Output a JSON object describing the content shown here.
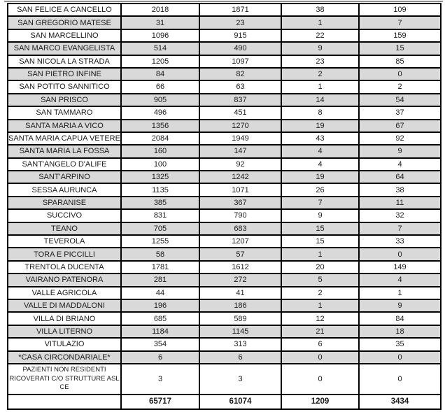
{
  "colors": {
    "shaded_row": "#d9d9d9",
    "border": "#000000",
    "text": "#1b1b1b",
    "background": "#ffffff"
  },
  "table": {
    "description": "Municipality table with four numeric value columns and a bold totals row",
    "rows": [
      {
        "name": "SAN FELICE A CANCELLO",
        "values": [
          "2018",
          "1871",
          "38",
          "109"
        ],
        "shaded": false
      },
      {
        "name": "SAN GREGORIO MATESE",
        "values": [
          "31",
          "23",
          "1",
          "7"
        ],
        "shaded": true
      },
      {
        "name": "SAN MARCELLINO",
        "values": [
          "1096",
          "915",
          "22",
          "159"
        ],
        "shaded": false
      },
      {
        "name": "SAN MARCO EVANGELISTA",
        "values": [
          "514",
          "490",
          "9",
          "15"
        ],
        "shaded": true
      },
      {
        "name": "SAN NICOLA LA STRADA",
        "values": [
          "1205",
          "1097",
          "23",
          "85"
        ],
        "shaded": false
      },
      {
        "name": "SAN PIETRO INFINE",
        "values": [
          "84",
          "82",
          "2",
          "0"
        ],
        "shaded": true
      },
      {
        "name": "SAN POTITO SANNITICO",
        "values": [
          "66",
          "63",
          "1",
          "2"
        ],
        "shaded": false
      },
      {
        "name": "SAN PRISCO",
        "values": [
          "905",
          "837",
          "14",
          "54"
        ],
        "shaded": true
      },
      {
        "name": "SAN TAMMARO",
        "values": [
          "496",
          "451",
          "8",
          "37"
        ],
        "shaded": false
      },
      {
        "name": "SANTA MARIA A VICO",
        "values": [
          "1356",
          "1270",
          "19",
          "67"
        ],
        "shaded": true
      },
      {
        "name": "SANTA MARIA CAPUA VETERE",
        "values": [
          "2084",
          "1949",
          "43",
          "92"
        ],
        "shaded": false
      },
      {
        "name": "SANTA MARIA LA FOSSA",
        "values": [
          "160",
          "147",
          "4",
          "9"
        ],
        "shaded": true
      },
      {
        "name": "SANT'ANGELO D'ALIFE",
        "values": [
          "100",
          "92",
          "4",
          "4"
        ],
        "shaded": false
      },
      {
        "name": "SANT'ARPINO",
        "values": [
          "1325",
          "1242",
          "19",
          "64"
        ],
        "shaded": true
      },
      {
        "name": "SESSA AURUNCA",
        "values": [
          "1135",
          "1071",
          "26",
          "38"
        ],
        "shaded": false
      },
      {
        "name": "SPARANISE",
        "values": [
          "385",
          "367",
          "7",
          "11"
        ],
        "shaded": true
      },
      {
        "name": "SUCCIVO",
        "values": [
          "831",
          "790",
          "9",
          "32"
        ],
        "shaded": false
      },
      {
        "name": "TEANO",
        "values": [
          "705",
          "683",
          "15",
          "7"
        ],
        "shaded": true
      },
      {
        "name": "TEVEROLA",
        "values": [
          "1255",
          "1207",
          "15",
          "33"
        ],
        "shaded": false
      },
      {
        "name": "TORA E PICCILLI",
        "values": [
          "58",
          "57",
          "1",
          "0"
        ],
        "shaded": true
      },
      {
        "name": "TRENTOLA DUCENTA",
        "values": [
          "1781",
          "1612",
          "20",
          "149"
        ],
        "shaded": false
      },
      {
        "name": "VAIRANO PATENORA",
        "values": [
          "281",
          "272",
          "5",
          "4"
        ],
        "shaded": true
      },
      {
        "name": "VALLE AGRICOLA",
        "values": [
          "44",
          "41",
          "2",
          "1"
        ],
        "shaded": false
      },
      {
        "name": "VALLE DI MADDALONI",
        "values": [
          "196",
          "186",
          "1",
          "9"
        ],
        "shaded": true
      },
      {
        "name": "VILLA DI BRIANO",
        "values": [
          "685",
          "589",
          "12",
          "84"
        ],
        "shaded": false
      },
      {
        "name": "VILLA LITERNO",
        "values": [
          "1184",
          "1145",
          "21",
          "18"
        ],
        "shaded": true
      },
      {
        "name": "VITULAZIO",
        "values": [
          "354",
          "313",
          "6",
          "35"
        ],
        "shaded": false
      },
      {
        "name": "*CASA CIRCONDARIALE*",
        "values": [
          "6",
          "6",
          "0",
          "0"
        ],
        "shaded": true
      },
      {
        "name": "PAZIENTI NON RESIDENTI RICOVERATI C/O STRUTTURE ASL CE",
        "lines": [
          "PAZIENTI NON RESIDENTI",
          "RICOVERATI C/O STRUTTURE ASL",
          "CE"
        ],
        "values": [
          "3",
          "3",
          "0",
          "0"
        ],
        "shaded": false,
        "tall": true
      },
      {
        "name": "",
        "values": [
          "65717",
          "61074",
          "1209",
          "3434"
        ],
        "shaded": false,
        "bold": true
      }
    ]
  }
}
